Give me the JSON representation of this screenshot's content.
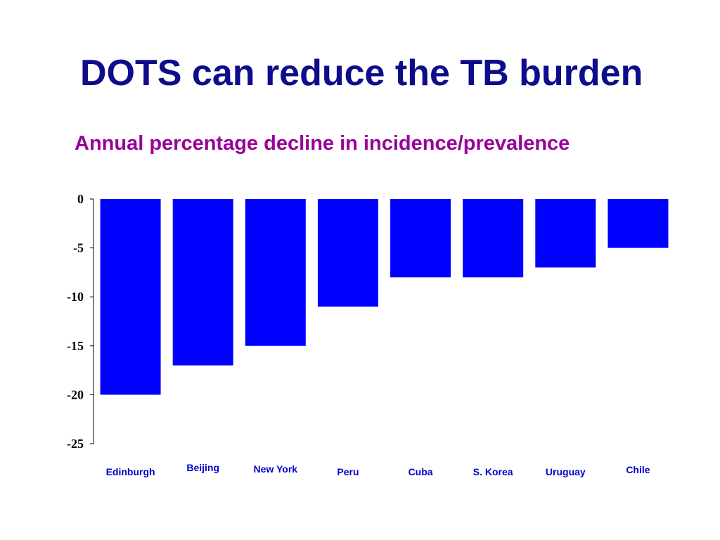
{
  "slide": {
    "title": "DOTS can reduce the TB burden"
  },
  "chart_data": {
    "type": "bar",
    "title": "Annual percentage decline in incidence/prevalence",
    "categories": [
      "Edinburgh",
      "Beijing",
      "New York",
      "Peru",
      "Cuba",
      "S. Korea",
      "Uruguay",
      "Chile"
    ],
    "values": [
      -20,
      -17,
      -15,
      -11,
      -8,
      -8,
      -7,
      -5
    ],
    "ylim": [
      -25,
      0
    ],
    "yticks": [
      "0",
      "-5",
      "-10",
      "-15",
      "-20",
      "-25"
    ],
    "xlabel": "",
    "ylabel": "",
    "grid": false,
    "colors": {
      "bar": "#0000ff",
      "category_label": "#0000cc",
      "title": "#0d0d8c",
      "chart_title": "#990099"
    }
  }
}
